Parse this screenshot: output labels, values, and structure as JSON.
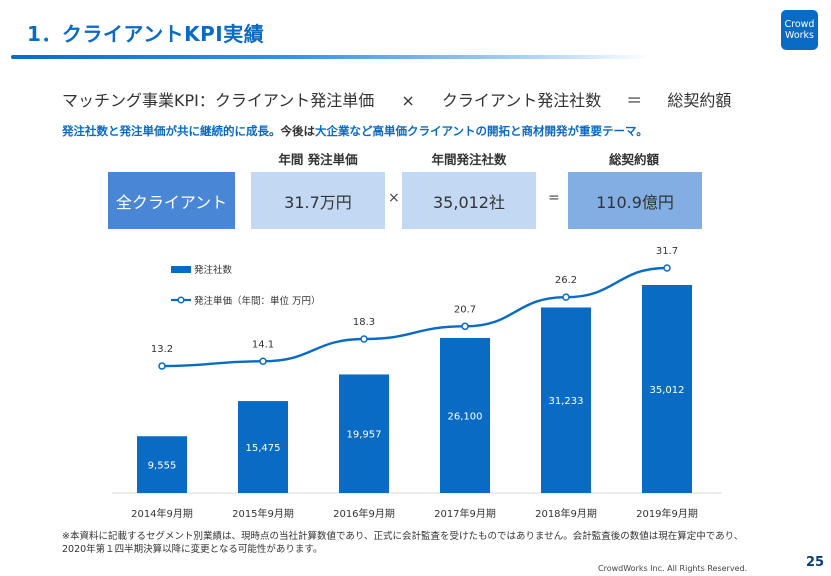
{
  "header": {
    "title": "1．クライアントKPI実績",
    "logo_line1": "Crowd",
    "logo_line2": "Works"
  },
  "formula": {
    "prefix": "マッチング事業KPI：クライアント発注単価",
    "times": "×",
    "middle": "クライアント発注社数",
    "equals": "＝",
    "result": "総契約額"
  },
  "subtitle": {
    "part1": "発注社数と発注単価が共に継続的に成長。",
    "part2": "今後は",
    "part3": "大企業など高単価クライアントの開拓と商材開発が重要テーマ。"
  },
  "summary": {
    "row_label": "全クライアント",
    "col1_header": "年間 発注単価",
    "col1_value": "31.7万円",
    "op1": "×",
    "col2_header": "年間発注社数",
    "col2_value": "35,012社",
    "op2": "=",
    "col3_header": "総契約額",
    "col3_value": "110.9億円",
    "colors": {
      "label_box": "#4a86d6",
      "value_box": "#c3d9f3",
      "result_box": "#82aee3"
    }
  },
  "chart_data": {
    "type": "bar",
    "categories": [
      "2014年9月期",
      "2015年9月期",
      "2016年9月期",
      "2017年9月期",
      "2018年9月期",
      "2019年9月期"
    ],
    "series": [
      {
        "name": "発注社数",
        "kind": "bar",
        "color": "#0a6bc4",
        "values": [
          9555,
          15475,
          19957,
          26100,
          31233,
          35012
        ],
        "labels": [
          "9,555",
          "15,475",
          "19,957",
          "26,100",
          "31,233",
          "35,012"
        ]
      },
      {
        "name": "発注単価（年間：単位 万円）",
        "kind": "line",
        "color": "#0a6bc4",
        "values": [
          13.2,
          14.1,
          18.3,
          20.7,
          26.2,
          31.7
        ],
        "labels": [
          "13.2",
          "14.1",
          "18.3",
          "20.7",
          "26.2",
          "31.7"
        ]
      }
    ],
    "legend": {
      "placement": "top-left",
      "items": [
        "発注社数",
        "発注単価（年間：単位 万円）"
      ]
    },
    "grid": false,
    "xlabel": "",
    "ylabel": ""
  },
  "footer": {
    "note_line1": "※本資料に記載するセグメント別業績は、現時点の当社計算数値であり、正式に会計監査を受けたものではありません。会計監査後の数値は現在算定中であり、",
    "note_line2": "2020年第１四半期決算以降に変更となる可能性があります。",
    "copyright": "CrowdWorks Inc. All Rights Reserved.",
    "page_number": "25"
  }
}
